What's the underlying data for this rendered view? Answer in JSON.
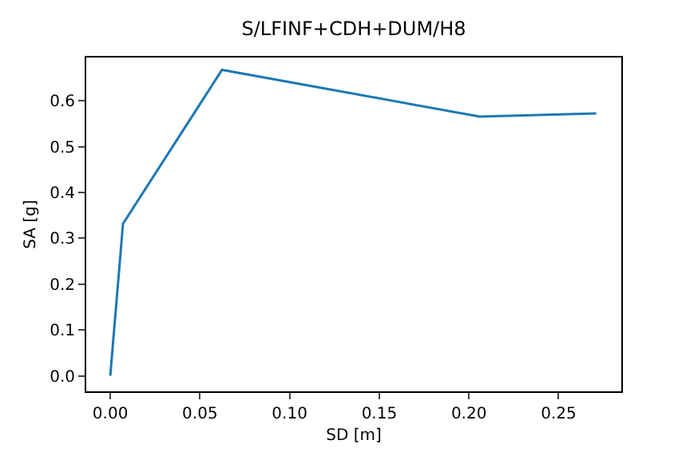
{
  "chart_data": {
    "type": "line",
    "title": "S/LFINF+CDH+DUM/H8",
    "xlabel": "SD [m]",
    "ylabel": "SA [g]",
    "x": [
      0,
      0.0071,
      0.0623,
      0.206,
      0.271
    ],
    "series": [
      {
        "color": "#1f77b4",
        "values": [
          0,
          0.332,
          0.668,
          0.566,
          0.573
        ]
      }
    ],
    "xlim": [
      -0.0134,
      0.285
    ],
    "xticks": [
      {
        "value": 0,
        "label": "0.00"
      },
      {
        "value": 0.05,
        "label": "0.05"
      },
      {
        "value": 0.1,
        "label": "0.10"
      },
      {
        "value": 0.15,
        "label": "0.15"
      },
      {
        "value": 0.2,
        "label": "0.20"
      },
      {
        "value": 0.25,
        "label": "0.25"
      }
    ],
    "ylim": [
      -0.034,
      0.695
    ],
    "yticks": [
      {
        "value": 0,
        "label": "0.0"
      },
      {
        "value": 0.1,
        "label": "0.1"
      },
      {
        "value": 0.2,
        "label": "0.2"
      },
      {
        "value": 0.3,
        "label": "0.3"
      },
      {
        "value": 0.4,
        "label": "0.4"
      },
      {
        "value": 0.5,
        "label": "0.5"
      },
      {
        "value": 0.6,
        "label": "0.6"
      }
    ],
    "marker": "none",
    "line_style": "solid"
  }
}
